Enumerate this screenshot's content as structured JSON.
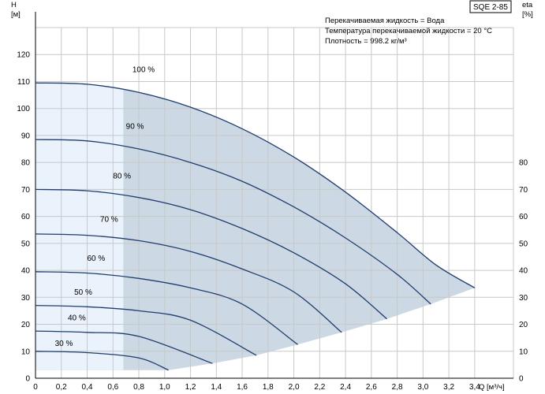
{
  "chart_data": {
    "type": "line",
    "product_label": "SQE 2-85",
    "info_lines": [
      "Перекачиваемая жидкость = Вода",
      "Температура перекачиваемой жидкости = 20 °C",
      "Плотность = 998.2 кг/м³"
    ],
    "y_left": {
      "label": "H",
      "unit": "[м]",
      "range": [
        0,
        130
      ],
      "ticks": [
        0,
        10,
        20,
        30,
        40,
        50,
        60,
        70,
        80,
        90,
        100,
        110,
        120
      ]
    },
    "y_right": {
      "label": "eta",
      "unit": "[%]",
      "range": [
        0,
        130
      ],
      "ticks": [
        0,
        10,
        20,
        30,
        40,
        50,
        60,
        70,
        80
      ]
    },
    "x": {
      "unit": "Q [м³/ч]",
      "range": [
        0,
        3.7
      ],
      "ticks": [
        0,
        0.2,
        0.4,
        0.6,
        0.8,
        1.0,
        1.2,
        1.4,
        1.6,
        1.8,
        2.0,
        2.2,
        2.4,
        2.6,
        2.8,
        3.0,
        3.2,
        3.4
      ],
      "tick_labels": [
        "0",
        "0,2",
        "0,4",
        "0,6",
        "0,8",
        "1,0",
        "1,2",
        "1,4",
        "1,6",
        "1,8",
        "2,0",
        "2,2",
        "2,4",
        "2,6",
        "2,8",
        "3,0",
        "3,2",
        "3,4"
      ]
    },
    "grid": true,
    "series": [
      {
        "name": "100 %",
        "points": [
          [
            0,
            109.5
          ],
          [
            0.4,
            109
          ],
          [
            0.8,
            106
          ],
          [
            1.2,
            100.5
          ],
          [
            1.6,
            92.5
          ],
          [
            2.0,
            82
          ],
          [
            2.4,
            69
          ],
          [
            2.8,
            54
          ],
          [
            3.1,
            42
          ],
          [
            3.4,
            33.5
          ]
        ]
      },
      {
        "name": "90 %",
        "points": [
          [
            0,
            88.5
          ],
          [
            0.4,
            88
          ],
          [
            0.8,
            85
          ],
          [
            1.2,
            80
          ],
          [
            1.6,
            73
          ],
          [
            2.0,
            63.5
          ],
          [
            2.4,
            52
          ],
          [
            2.8,
            38.5
          ],
          [
            3.06,
            27.5
          ]
        ]
      },
      {
        "name": "80 %",
        "points": [
          [
            0,
            70
          ],
          [
            0.4,
            69.5
          ],
          [
            0.8,
            67
          ],
          [
            1.2,
            62.5
          ],
          [
            1.6,
            55.5
          ],
          [
            2.0,
            46.5
          ],
          [
            2.4,
            35
          ],
          [
            2.72,
            22
          ]
        ]
      },
      {
        "name": "70 %",
        "points": [
          [
            0,
            53.5
          ],
          [
            0.4,
            53
          ],
          [
            0.8,
            51
          ],
          [
            1.2,
            47
          ],
          [
            1.6,
            40.5
          ],
          [
            2.0,
            32
          ],
          [
            2.37,
            17
          ]
        ]
      },
      {
        "name": "60 %",
        "points": [
          [
            0,
            39.5
          ],
          [
            0.4,
            39
          ],
          [
            0.8,
            37
          ],
          [
            1.2,
            33.5
          ],
          [
            1.6,
            27.5
          ],
          [
            2.03,
            12.5
          ]
        ]
      },
      {
        "name": "50 %",
        "points": [
          [
            0,
            27
          ],
          [
            0.4,
            26.5
          ],
          [
            0.8,
            25
          ],
          [
            1.2,
            21.5
          ],
          [
            1.71,
            8.5
          ]
        ]
      },
      {
        "name": "40 %",
        "points": [
          [
            0,
            17.5
          ],
          [
            0.4,
            17
          ],
          [
            0.8,
            15.5
          ],
          [
            1.37,
            5.5
          ]
        ]
      },
      {
        "name": "30 %",
        "points": [
          [
            0,
            10
          ],
          [
            0.4,
            9.5
          ],
          [
            0.8,
            7.5
          ],
          [
            1.03,
            3
          ]
        ]
      }
    ],
    "label_positions": [
      [
        0.75,
        113.5
      ],
      [
        0.7,
        92.5
      ],
      [
        0.6,
        74
      ],
      [
        0.5,
        58
      ],
      [
        0.4,
        43.5
      ],
      [
        0.3,
        31
      ],
      [
        0.25,
        21.5
      ],
      [
        0.15,
        12
      ]
    ],
    "envelope_bottom": [
      [
        1.03,
        3
      ],
      [
        1.37,
        5.5
      ],
      [
        1.71,
        8.5
      ],
      [
        2.03,
        12.5
      ],
      [
        2.37,
        17
      ],
      [
        2.72,
        22
      ],
      [
        3.06,
        27.5
      ],
      [
        3.4,
        33.5
      ]
    ],
    "light_region_x_max": 0.68,
    "colors": {
      "curve": "#1f3d6e",
      "region_dark": "#ccd8e4",
      "region_light": "#eaf2fb",
      "grid": "#c8c8c8"
    }
  }
}
